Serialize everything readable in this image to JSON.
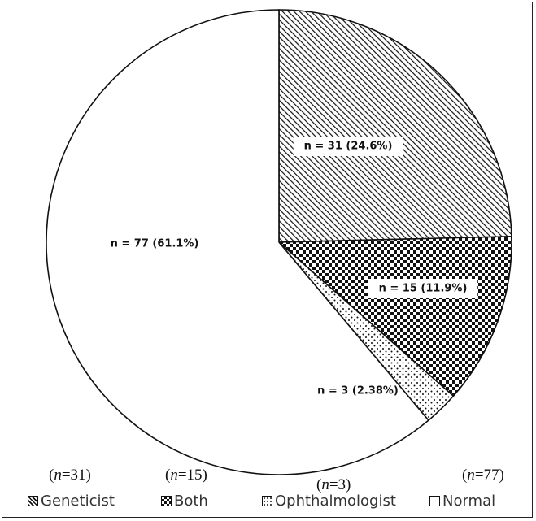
{
  "chart_data": {
    "type": "pie",
    "title": "",
    "slices": [
      {
        "name": "Geneticist",
        "value": 31,
        "percent": 24.6,
        "label": "n = 31 (24.6%)",
        "note": "(n=31)",
        "pattern": "diagonal-hatch"
      },
      {
        "name": "Both",
        "value": 15,
        "percent": 11.9,
        "label": "n = 15 (11.9%)",
        "note": "(n=15)",
        "pattern": "checker"
      },
      {
        "name": "Ophthalmologist",
        "value": 3,
        "percent": 2.38,
        "label": "n = 3 (2.38%)",
        "note": "(n=3)",
        "pattern": "dots"
      },
      {
        "name": "Normal",
        "value": 77,
        "percent": 61.1,
        "label": "n = 77 (61.1%)",
        "note": "(n=77)",
        "pattern": "none"
      }
    ],
    "legend_position": "bottom",
    "start_angle": "12 o'clock",
    "direction": "clockwise"
  }
}
